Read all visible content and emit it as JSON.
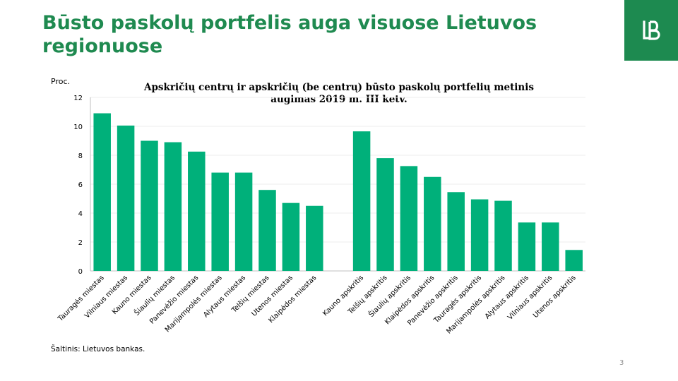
{
  "slide": {
    "title": "Būsto paskolų portfelis auga visuose Lietuvos regionuose",
    "source": "Šaltinis: Lietuvos bankas.",
    "page_number": "3",
    "logo": "lietuvos-bankas-logo-icon"
  },
  "colors": {
    "bar": "#00b07a",
    "brand": "#1d8a50",
    "title": "#1f8a50"
  },
  "chart_data": {
    "type": "bar",
    "title": "Apskričių centrų ir apskričių (be centrų) būsto paskolų portfelių metinis augimas 2019 m. III ketv.",
    "ylabel": "Proc.",
    "xlabel": "",
    "ylim": [
      0,
      12
    ],
    "yticks": [
      0,
      2,
      4,
      6,
      8,
      10,
      12
    ],
    "grid": true,
    "legend": "none",
    "groups": [
      {
        "categories": [
          "Tauragės miestas",
          "Vilniaus miestas",
          "Kauno miestas",
          "Šiaulių miestas",
          "Panevėžio miestas",
          "Marijampolės miestas",
          "Alytaus miestas",
          "Telšių miestas",
          "Utenos miestas",
          "Klaipėdos miestas"
        ],
        "values": [
          10.9,
          10.05,
          9.0,
          8.9,
          8.25,
          6.8,
          6.8,
          5.6,
          4.7,
          4.5
        ]
      },
      {
        "categories": [
          "Kauno apskritis",
          "Telšių apskritis",
          "Šiaulių apskritis",
          "Klaipėdos apskritis",
          "Panevėžio apskritis",
          "Tauragės apskritis",
          "Marijampolės apskritis",
          "Alytaus apskritis",
          "Vilniaus apskritis",
          "Utenos apskritis"
        ],
        "values": [
          9.65,
          7.8,
          7.25,
          6.5,
          5.45,
          4.95,
          4.85,
          3.35,
          3.35,
          1.45
        ]
      }
    ]
  }
}
